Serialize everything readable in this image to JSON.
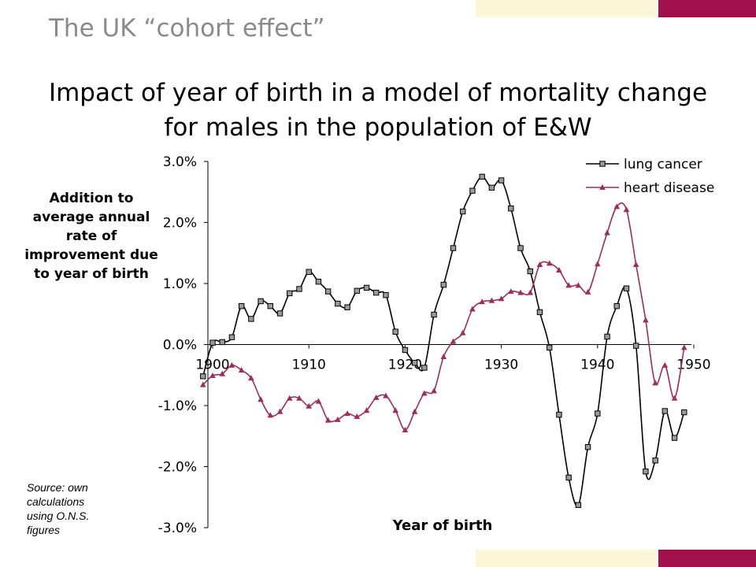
{
  "slide_title": "The UK “cohort effect”",
  "colors": {
    "accent_red": "#a0114b",
    "accent_cream": "#fbf6d8",
    "lung": "#000000",
    "heart": "#9c2d5e"
  },
  "chart_data": {
    "type": "line",
    "title_line1": "Impact of year of birth in a model of mortality change",
    "title_line2": "for males in the population of E&W",
    "ylabel_lines": [
      "Addition to",
      "average annual",
      "rate of",
      "improvement due",
      "to year of birth"
    ],
    "xlabel": "Year of birth",
    "source_note": "Source: own calculations using O.N.S. figures",
    "ylim": [
      -3.0,
      3.0
    ],
    "xlim": [
      1900,
      1950
    ],
    "x_ticks": [
      1900,
      1910,
      1920,
      1930,
      1940,
      1950
    ],
    "x_tick_labels": [
      "1900",
      "1910",
      "1920",
      "1930",
      "1940",
      "1950"
    ],
    "y_ticks": [
      3.0,
      2.0,
      1.0,
      0.0,
      -1.0,
      -2.0,
      -3.0
    ],
    "y_tick_labels": [
      "3.0%",
      "2.0%",
      "1.0%",
      "0.0%",
      "-1.0%",
      "-2.0%",
      "-3.0%"
    ],
    "legend_position": "top-right",
    "grid": false,
    "x": [
      1899,
      1900,
      1901,
      1902,
      1903,
      1904,
      1905,
      1906,
      1907,
      1908,
      1909,
      1910,
      1911,
      1912,
      1913,
      1914,
      1915,
      1916,
      1917,
      1918,
      1919,
      1920,
      1921,
      1922,
      1923,
      1924,
      1925,
      1926,
      1927,
      1928,
      1929,
      1930,
      1931,
      1932,
      1933,
      1934,
      1935,
      1936,
      1937,
      1938,
      1939,
      1940,
      1941,
      1942,
      1943,
      1944,
      1945,
      1946,
      1947,
      1948,
      1949,
      1950
    ],
    "series": [
      {
        "name": "lung cancer",
        "marker": "square",
        "values": [
          -0.52,
          0.03,
          0.04,
          0.12,
          0.63,
          0.42,
          0.71,
          0.63,
          0.51,
          0.84,
          0.91,
          1.19,
          1.03,
          0.87,
          0.67,
          0.61,
          0.88,
          0.93,
          0.85,
          0.81,
          0.21,
          -0.09,
          -0.3,
          -0.38,
          0.49,
          0.98,
          1.58,
          2.18,
          2.52,
          2.75,
          2.57,
          2.69,
          2.23,
          1.58,
          1.2,
          0.53,
          -0.05,
          -1.15,
          -2.18,
          -2.63,
          -1.68,
          -1.13,
          0.13,
          0.63,
          0.92,
          -0.02,
          -2.08,
          -1.9,
          -1.09,
          -1.53,
          -1.11,
          null
        ]
      },
      {
        "name": "heart disease",
        "marker": "triangle",
        "values": [
          -0.66,
          -0.51,
          -0.48,
          -0.34,
          -0.42,
          -0.55,
          -0.9,
          -1.16,
          -1.1,
          -0.88,
          -0.88,
          -1.01,
          -0.93,
          -1.24,
          -1.23,
          -1.13,
          -1.18,
          -1.08,
          -0.87,
          -0.84,
          -1.08,
          -1.4,
          -1.1,
          -0.8,
          -0.76,
          -0.2,
          0.05,
          0.19,
          0.58,
          0.7,
          0.72,
          0.75,
          0.87,
          0.85,
          0.85,
          1.31,
          1.33,
          1.22,
          0.97,
          0.97,
          0.86,
          1.32,
          1.83,
          2.26,
          2.21,
          1.31,
          0.4,
          -0.63,
          -0.34,
          -0.88,
          -0.05,
          null
        ]
      }
    ]
  }
}
